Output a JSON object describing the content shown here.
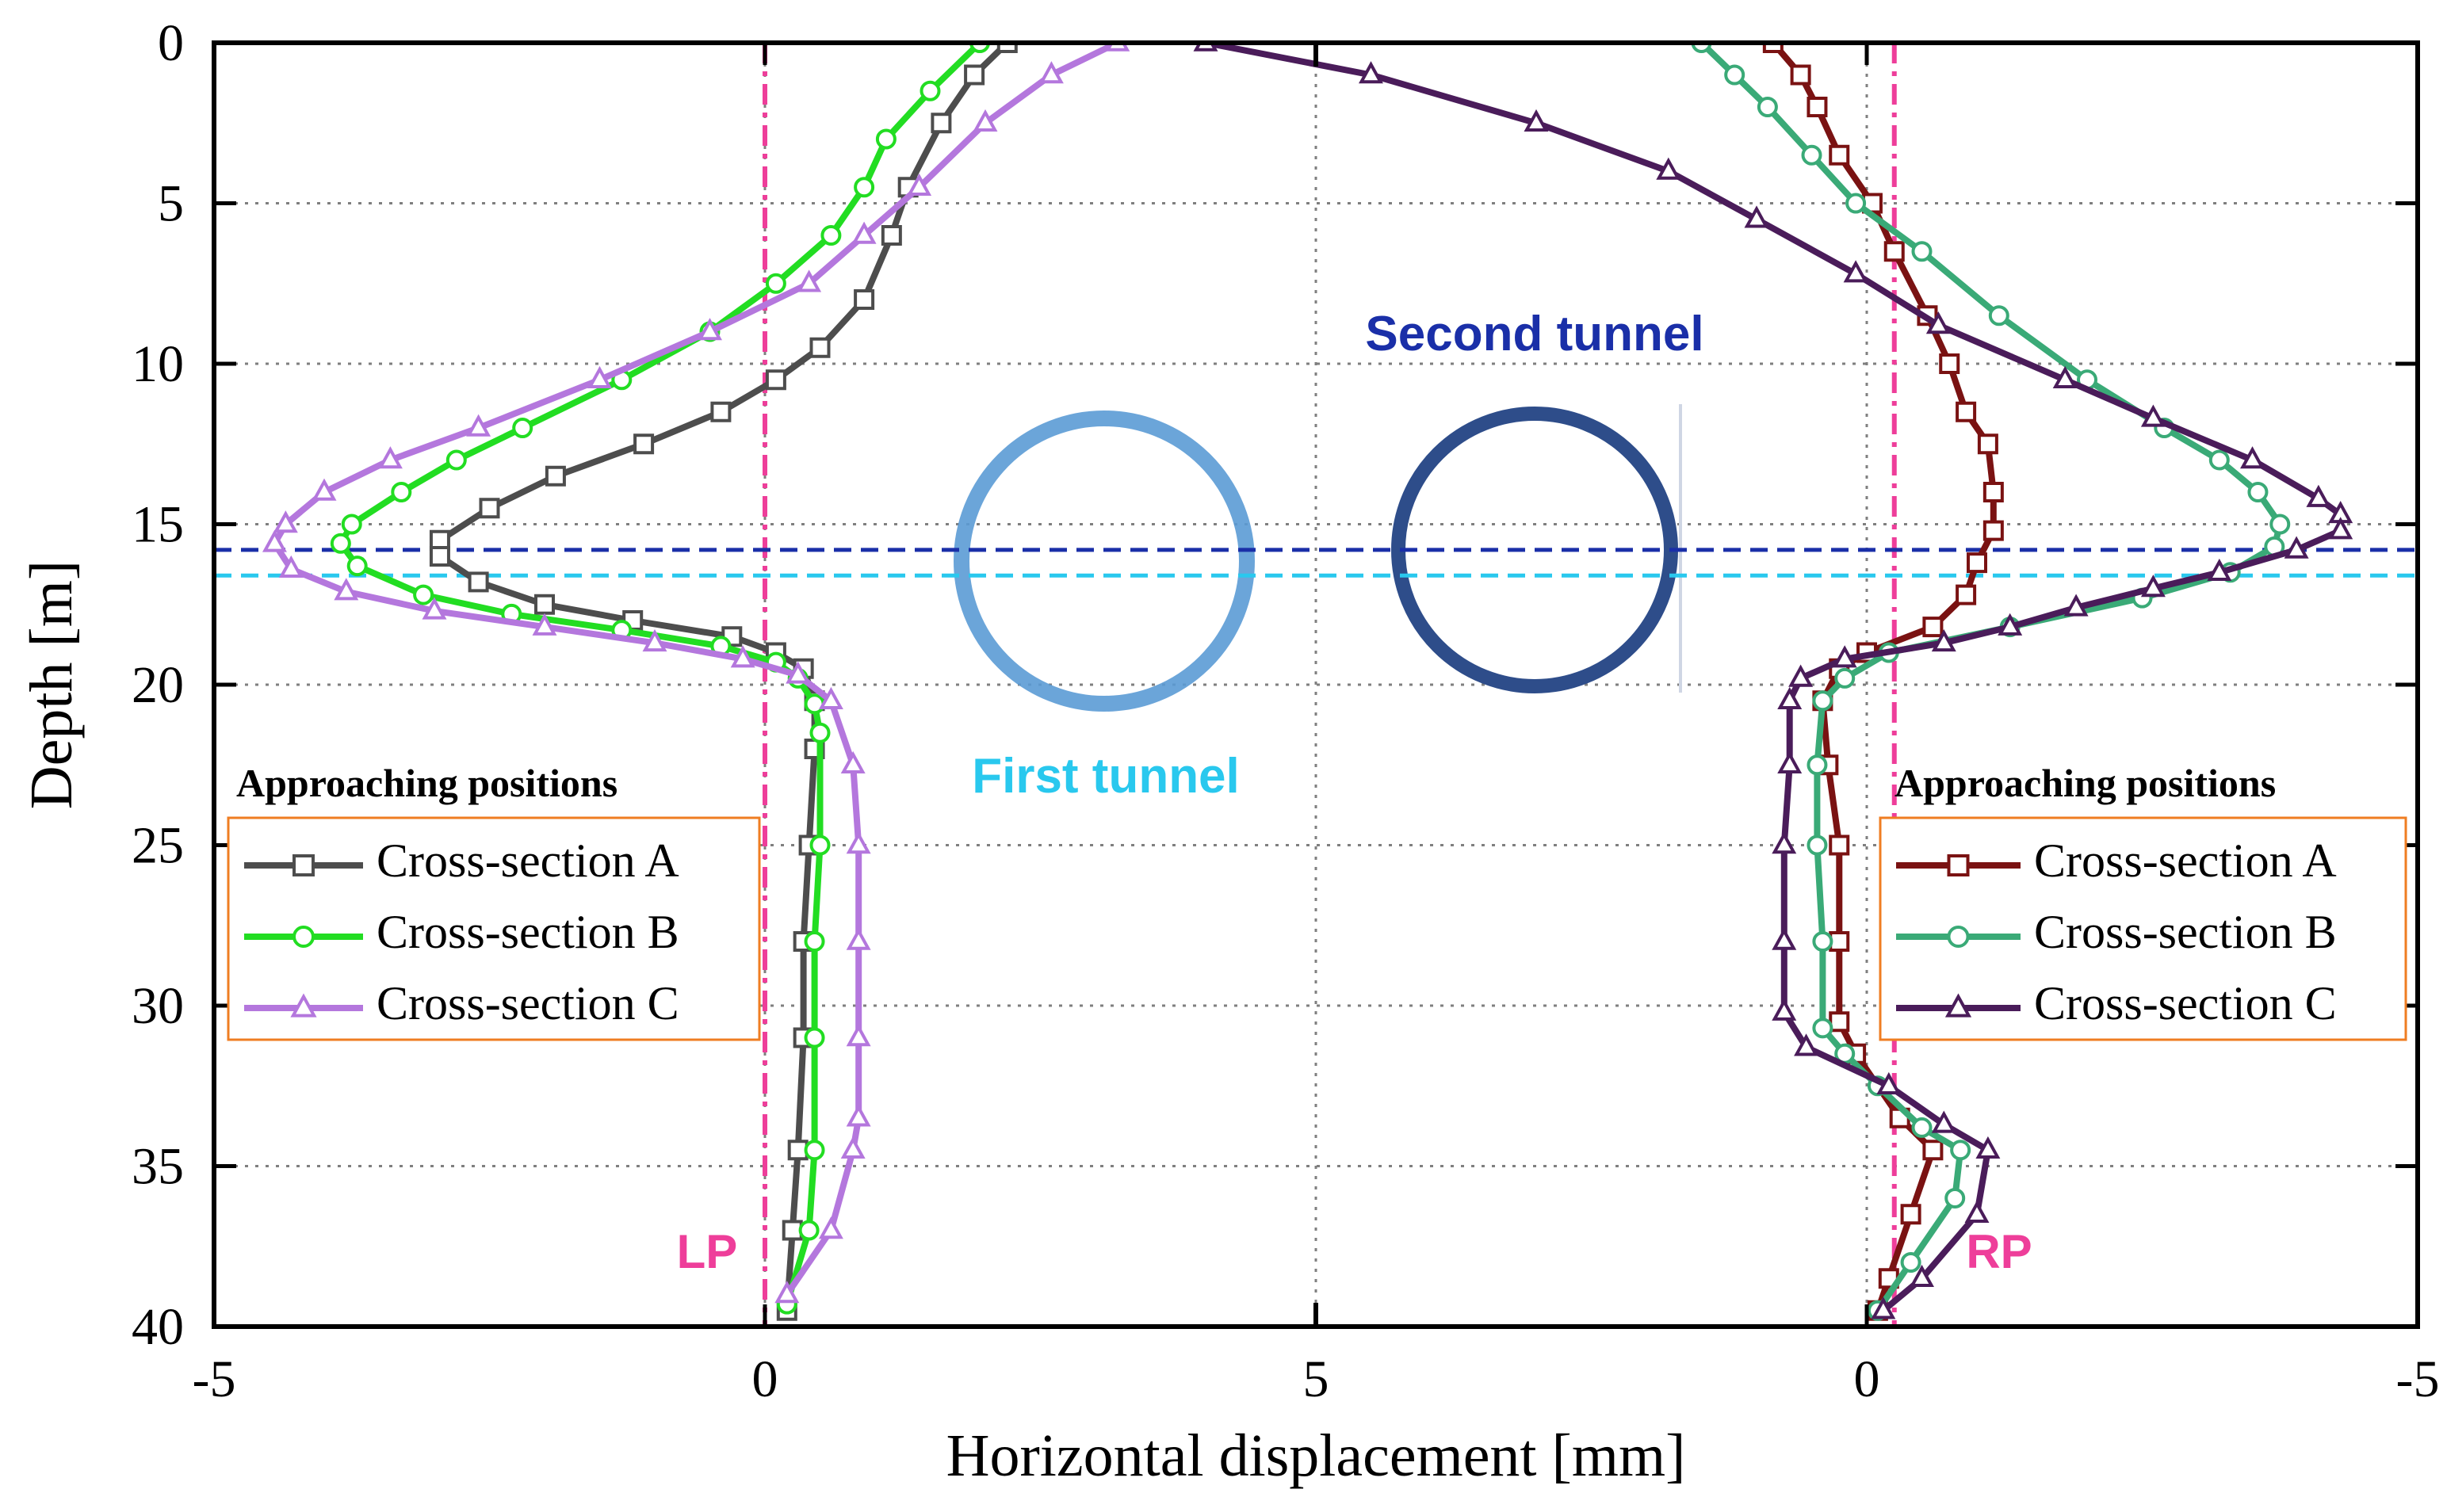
{
  "chart_data": {
    "type": "line",
    "xlabel": "Horizontal displacement [mm]",
    "ylabel": "Depth [m]",
    "x_tick_labels": [
      "-5",
      "0",
      "5",
      "0",
      "-5"
    ],
    "y_ticks": [
      0,
      5,
      10,
      15,
      20,
      25,
      30,
      35,
      40
    ],
    "ylim": [
      0,
      40
    ],
    "grid": true,
    "panels": [
      {
        "name": "left",
        "xlim": [
          -5,
          5
        ],
        "legend": {
          "title": "Approaching positions",
          "placement": "left",
          "entries": [
            "Cross-section A",
            "Cross-section B",
            "Cross-section C"
          ]
        },
        "reference_line": {
          "label": "LP",
          "x": 0
        },
        "series": [
          {
            "name": "Cross-section A",
            "marker": "square",
            "color": "#4d4d4d",
            "points": [
              [
                2.2,
                0
              ],
              [
                1.9,
                1
              ],
              [
                1.6,
                2.5
              ],
              [
                1.3,
                4.5
              ],
              [
                1.15,
                6
              ],
              [
                0.9,
                8
              ],
              [
                0.5,
                9.5
              ],
              [
                0.1,
                10.5
              ],
              [
                -0.4,
                11.5
              ],
              [
                -1.1,
                12.5
              ],
              [
                -1.9,
                13.5
              ],
              [
                -2.5,
                14.5
              ],
              [
                -2.95,
                15.5
              ],
              [
                -2.95,
                16
              ],
              [
                -2.6,
                16.8
              ],
              [
                -2.0,
                17.5
              ],
              [
                -1.2,
                18
              ],
              [
                -0.3,
                18.5
              ],
              [
                0.1,
                19
              ],
              [
                0.35,
                19.5
              ],
              [
                0.45,
                20.5
              ],
              [
                0.45,
                22
              ],
              [
                0.4,
                25
              ],
              [
                0.35,
                28
              ],
              [
                0.35,
                31
              ],
              [
                0.3,
                34.5
              ],
              [
                0.25,
                37
              ],
              [
                0.2,
                39.5
              ]
            ]
          },
          {
            "name": "Cross-section B",
            "marker": "circle",
            "color": "#22dd22",
            "points": [
              [
                1.95,
                0
              ],
              [
                1.5,
                1.5
              ],
              [
                1.1,
                3
              ],
              [
                0.9,
                4.5
              ],
              [
                0.6,
                6
              ],
              [
                0.1,
                7.5
              ],
              [
                -0.5,
                9
              ],
              [
                -1.3,
                10.5
              ],
              [
                -2.2,
                12
              ],
              [
                -2.8,
                13
              ],
              [
                -3.3,
                14
              ],
              [
                -3.75,
                15
              ],
              [
                -3.85,
                15.6
              ],
              [
                -3.7,
                16.3
              ],
              [
                -3.1,
                17.2
              ],
              [
                -2.3,
                17.8
              ],
              [
                -1.3,
                18.3
              ],
              [
                -0.4,
                18.8
              ],
              [
                0.1,
                19.3
              ],
              [
                0.3,
                19.8
              ],
              [
                0.45,
                20.6
              ],
              [
                0.5,
                21.5
              ],
              [
                0.5,
                25
              ],
              [
                0.45,
                28
              ],
              [
                0.45,
                31
              ],
              [
                0.45,
                34.5
              ],
              [
                0.4,
                37
              ],
              [
                0.2,
                39.3
              ]
            ]
          },
          {
            "name": "Cross-section C",
            "marker": "triangle",
            "color": "#b477dd",
            "points": [
              [
                3.2,
                0
              ],
              [
                2.6,
                1
              ],
              [
                2.0,
                2.5
              ],
              [
                1.4,
                4.5
              ],
              [
                0.9,
                6
              ],
              [
                0.4,
                7.5
              ],
              [
                -0.5,
                9
              ],
              [
                -1.5,
                10.5
              ],
              [
                -2.6,
                12
              ],
              [
                -3.4,
                13
              ],
              [
                -4.0,
                14
              ],
              [
                -4.35,
                15
              ],
              [
                -4.45,
                15.6
              ],
              [
                -4.3,
                16.4
              ],
              [
                -3.8,
                17.1
              ],
              [
                -3.0,
                17.7
              ],
              [
                -2.0,
                18.2
              ],
              [
                -1.0,
                18.7
              ],
              [
                -0.2,
                19.2
              ],
              [
                0.3,
                19.7
              ],
              [
                0.6,
                20.5
              ],
              [
                0.8,
                22.5
              ],
              [
                0.85,
                25
              ],
              [
                0.85,
                28
              ],
              [
                0.85,
                31
              ],
              [
                0.85,
                33.5
              ],
              [
                0.8,
                34.5
              ],
              [
                0.6,
                37
              ],
              [
                0.2,
                39
              ]
            ]
          }
        ]
      },
      {
        "name": "right",
        "xlim": [
          5,
          -5
        ],
        "legend": {
          "title": "Approaching positions",
          "placement": "right",
          "entries": [
            "Cross-section A",
            "Cross-section B",
            "Cross-section C"
          ]
        },
        "reference_line": {
          "label": "RP",
          "x": -0.25
        },
        "series": [
          {
            "name": "Cross-section A",
            "marker": "square",
            "color": "#7a1212",
            "points": [
              [
                0.85,
                0
              ],
              [
                0.6,
                1
              ],
              [
                0.45,
                2
              ],
              [
                0.25,
                3.5
              ],
              [
                -0.05,
                5
              ],
              [
                -0.25,
                6.5
              ],
              [
                -0.55,
                8.5
              ],
              [
                -0.75,
                10
              ],
              [
                -0.9,
                11.5
              ],
              [
                -1.1,
                12.5
              ],
              [
                -1.15,
                14
              ],
              [
                -1.15,
                15.2
              ],
              [
                -1.0,
                16.2
              ],
              [
                -0.9,
                17.2
              ],
              [
                -0.6,
                18.2
              ],
              [
                0,
                19
              ],
              [
                0.25,
                19.5
              ],
              [
                0.4,
                20.5
              ],
              [
                0.35,
                22.5
              ],
              [
                0.25,
                25
              ],
              [
                0.25,
                28
              ],
              [
                0.25,
                30.5
              ],
              [
                0.1,
                31.5
              ],
              [
                -0.3,
                33.5
              ],
              [
                -0.6,
                34.5
              ],
              [
                -0.4,
                36.5
              ],
              [
                -0.2,
                38.5
              ],
              [
                -0.1,
                39.5
              ]
            ]
          },
          {
            "name": "Cross-section B",
            "marker": "circle",
            "color": "#3aaa77",
            "points": [
              [
                1.5,
                0
              ],
              [
                1.2,
                1
              ],
              [
                0.9,
                2
              ],
              [
                0.5,
                3.5
              ],
              [
                0.1,
                5
              ],
              [
                -0.5,
                6.5
              ],
              [
                -1.2,
                8.5
              ],
              [
                -2.0,
                10.5
              ],
              [
                -2.7,
                12
              ],
              [
                -3.2,
                13
              ],
              [
                -3.55,
                14
              ],
              [
                -3.75,
                15
              ],
              [
                -3.7,
                15.7
              ],
              [
                -3.3,
                16.5
              ],
              [
                -2.5,
                17.3
              ],
              [
                -1.3,
                18.2
              ],
              [
                -0.2,
                19
              ],
              [
                0.2,
                19.8
              ],
              [
                0.4,
                20.5
              ],
              [
                0.45,
                22.5
              ],
              [
                0.45,
                25
              ],
              [
                0.4,
                28
              ],
              [
                0.4,
                30.7
              ],
              [
                0.2,
                31.5
              ],
              [
                -0.1,
                32.5
              ],
              [
                -0.5,
                33.8
              ],
              [
                -0.85,
                34.5
              ],
              [
                -0.8,
                36
              ],
              [
                -0.4,
                38
              ],
              [
                -0.1,
                39.5
              ]
            ]
          },
          {
            "name": "Cross-section C",
            "marker": "triangle",
            "color": "#4a1c5a",
            "points": [
              [
                6.0,
                0
              ],
              [
                4.5,
                1
              ],
              [
                3.0,
                2.5
              ],
              [
                1.8,
                4
              ],
              [
                1.0,
                5.5
              ],
              [
                0.1,
                7.2
              ],
              [
                -0.65,
                8.8
              ],
              [
                -1.8,
                10.5
              ],
              [
                -2.6,
                11.7
              ],
              [
                -3.5,
                13
              ],
              [
                -4.1,
                14.2
              ],
              [
                -4.3,
                14.7
              ],
              [
                -4.3,
                15.2
              ],
              [
                -3.9,
                15.8
              ],
              [
                -3.2,
                16.5
              ],
              [
                -2.6,
                17
              ],
              [
                -1.9,
                17.6
              ],
              [
                -1.3,
                18.2
              ],
              [
                -0.7,
                18.7
              ],
              [
                0.2,
                19.2
              ],
              [
                0.6,
                19.8
              ],
              [
                0.7,
                20.5
              ],
              [
                0.7,
                22.5
              ],
              [
                0.75,
                25
              ],
              [
                0.75,
                28
              ],
              [
                0.75,
                30.2
              ],
              [
                0.55,
                31.3
              ],
              [
                -0.2,
                32.5
              ],
              [
                -0.7,
                33.7
              ],
              [
                -1.1,
                34.5
              ],
              [
                -1.0,
                36.5
              ],
              [
                -0.5,
                38.5
              ],
              [
                -0.15,
                39.5
              ]
            ]
          }
        ]
      }
    ],
    "annotations": [
      {
        "label": "First tunnel",
        "color": "#29c8ee",
        "line_depth": 16.6
      },
      {
        "label": "Second tunnel",
        "color": "#1a2fa8",
        "line_depth": 15.8
      }
    ]
  }
}
